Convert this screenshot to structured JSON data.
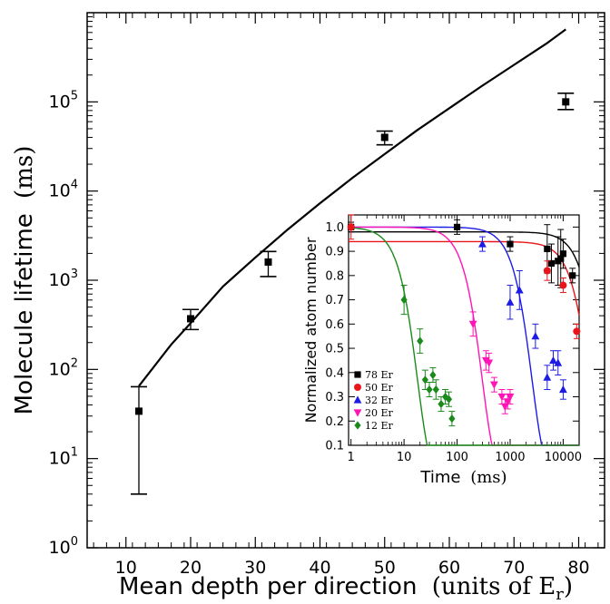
{
  "chart_data": [
    {
      "type": "scatter",
      "xlabel": "Mean depth per direction",
      "xlabel_units": "(units of E",
      "xlabel_units_sub": "r",
      "xlabel_units_close": ")",
      "ylabel": "Molecule lifetime",
      "ylabel_units": "(ms)",
      "xlim": [
        4,
        84
      ],
      "ylim": [
        1,
        1000000
      ],
      "yscale": "log",
      "x_ticks": [
        10,
        20,
        30,
        40,
        50,
        60,
        70,
        80
      ],
      "x_tick_labels": [
        "10",
        "20",
        "30",
        "40",
        "50",
        "60",
        "70",
        "80"
      ],
      "y_ticks": [
        1,
        10,
        100,
        1000,
        10000,
        100000
      ],
      "y_tick_base": "10",
      "y_tick_exponents": [
        "0",
        "1",
        "2",
        "3",
        "4",
        "5"
      ],
      "points": [
        {
          "x": 12,
          "y": 34,
          "err_low": 4,
          "err_high": 64
        },
        {
          "x": 20,
          "y": 370,
          "err_low": 280,
          "err_high": 470
        },
        {
          "x": 32,
          "y": 1600,
          "err_low": 1100,
          "err_high": 2100
        },
        {
          "x": 50,
          "y": 40000,
          "err_low": 33000,
          "err_high": 47000
        },
        {
          "x": 78,
          "y": 100000,
          "err_low": 82000,
          "err_high": 125000
        }
      ],
      "curve": {
        "x": [
          12,
          14,
          17,
          20,
          25,
          30,
          35,
          40,
          45,
          50,
          55,
          60,
          65,
          70,
          75,
          78
        ],
        "y": [
          65,
          100,
          190,
          330,
          850,
          1800,
          3700,
          7300,
          14000,
          26000,
          48000,
          85000,
          150000,
          260000,
          450000,
          650000
        ]
      }
    },
    {
      "type": "scatter",
      "xlabel": "Time",
      "xlabel_units": "(ms)",
      "ylabel": "Normalized atom number",
      "xscale": "log",
      "xlim": [
        0.9,
        20000
      ],
      "ylim": [
        0.1,
        1.05
      ],
      "x_ticks": [
        1,
        10,
        100,
        1000,
        10000
      ],
      "x_tick_labels": [
        "1",
        "10",
        "100",
        "1000",
        "10000"
      ],
      "y_ticks": [
        0.1,
        0.2,
        0.3,
        0.4,
        0.5,
        0.6,
        0.7,
        0.8,
        0.9,
        1.0
      ],
      "y_tick_labels": [
        "0.1",
        "0.2",
        "0.3",
        "0.4",
        "0.5",
        "0.6",
        "0.7",
        "0.8",
        "0.9",
        "1.0"
      ],
      "series": [
        {
          "name": "78 Er",
          "color": "#000000",
          "marker": "square",
          "points": [
            [
              1,
              1.0,
              0.02
            ],
            [
              100,
              1.0,
              0.03
            ],
            [
              1000,
              0.93,
              0.03
            ],
            [
              5000,
              0.91,
              0.1
            ],
            [
              6000,
              0.85,
              0.08
            ],
            [
              8000,
              0.86,
              0.1
            ],
            [
              9000,
              0.87,
              0.12
            ],
            [
              10000,
              0.89,
              0.06
            ],
            [
              15000,
              0.8,
              0.03
            ]
          ],
          "curve": {
            "a": 0.98,
            "tau": 50000
          }
        },
        {
          "name": "50 Er",
          "color": "#e8161b",
          "marker": "circle",
          "points": [
            [
              1,
              1.0,
              0.05
            ],
            [
              5000,
              0.82,
              0.04
            ],
            [
              10000,
              0.76,
              0.03
            ],
            [
              18000,
              0.57,
              0.03
            ]
          ],
          "curve": {
            "a": 0.94,
            "tau": 32000
          }
        },
        {
          "name": "32 Er",
          "color": "#1c1ce6",
          "marker": "triangle-up",
          "points": [
            [
              300,
              0.93,
              0.03
            ],
            [
              1000,
              0.69,
              0.07
            ],
            [
              1500,
              0.74,
              0.08
            ],
            [
              3000,
              0.55,
              0.05
            ],
            [
              5000,
              0.38,
              0.05
            ],
            [
              6500,
              0.45,
              0.04
            ],
            [
              8000,
              0.44,
              0.05
            ],
            [
              10000,
              0.33,
              0.04
            ]
          ],
          "curve": {
            "a": 1.0,
            "tau": 2600
          }
        },
        {
          "name": "20 Er",
          "color": "#ff14b5",
          "marker": "triangle-down",
          "points": [
            [
              200,
              0.6,
              0.05
            ],
            [
              350,
              0.45,
              0.04
            ],
            [
              400,
              0.44,
              0.04
            ],
            [
              500,
              0.35,
              0.03
            ],
            [
              700,
              0.3,
              0.03
            ],
            [
              800,
              0.26,
              0.03
            ],
            [
              900,
              0.28,
              0.03
            ],
            [
              1000,
              0.3,
              0.03
            ]
          ],
          "curve": {
            "a": 1.0,
            "tau": 300
          }
        },
        {
          "name": "12 Er",
          "color": "#1a8a1a",
          "marker": "diamond",
          "points": [
            [
              10,
              0.7,
              0.06
            ],
            [
              20,
              0.53,
              0.05
            ],
            [
              25,
              0.37,
              0.04
            ],
            [
              30,
              0.33,
              0.03
            ],
            [
              35,
              0.39,
              0.03
            ],
            [
              40,
              0.33,
              0.04
            ],
            [
              50,
              0.27,
              0.03
            ],
            [
              60,
              0.3,
              0.03
            ],
            [
              70,
              0.29,
              0.03
            ],
            [
              80,
              0.21,
              0.03
            ]
          ],
          "curve": {
            "a": 1.0,
            "tau": 18
          }
        }
      ],
      "legend_position": "bottom-left"
    }
  ]
}
